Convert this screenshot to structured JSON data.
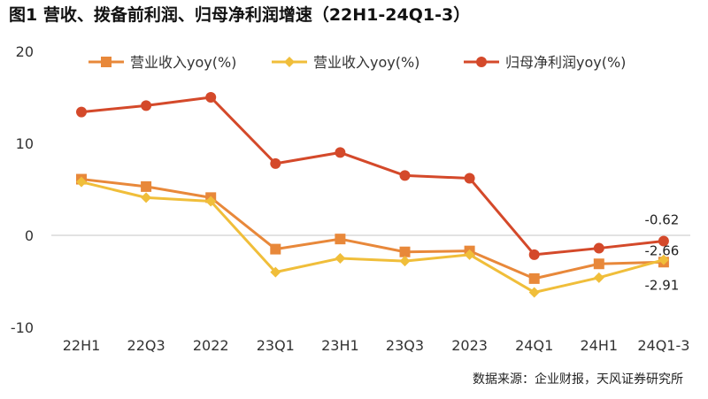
{
  "title": "图1  营收、拨备前利润、归母净利润增速（22H1-24Q1-3）",
  "source": "数据来源：企业财报，天风证券研究所",
  "colors": {
    "series1": "#E8883A",
    "series2": "#F0BE3A",
    "series3": "#D4492A",
    "zero_line": "#d9d9d9"
  },
  "chart_data": {
    "type": "line",
    "title": "",
    "xlabel": "",
    "ylabel": "",
    "ylim": [
      -10,
      20
    ],
    "yticks": [
      20,
      10,
      0,
      -10
    ],
    "categories": [
      "22H1",
      "22Q3",
      "2022",
      "23Q1",
      "23H1",
      "23Q3",
      "2023",
      "24Q1",
      "24H1",
      "24Q1-3"
    ],
    "legend_position": "top",
    "grid": false,
    "series": [
      {
        "name": "营业收入yoy(%)",
        "marker": "square",
        "color": "#E8883A",
        "values": [
          6.1,
          5.3,
          4.1,
          -1.5,
          -0.4,
          -1.8,
          -1.7,
          -4.7,
          -3.1,
          -2.91
        ]
      },
      {
        "name": "营业收入yoy(%)",
        "marker": "diamond",
        "color": "#F0BE3A",
        "values": [
          5.8,
          4.1,
          3.7,
          -4.0,
          -2.5,
          -2.8,
          -2.1,
          -6.2,
          -4.6,
          -2.66
        ]
      },
      {
        "name": "归母净利润yoy(%)",
        "marker": "circle",
        "color": "#D4492A",
        "values": [
          13.4,
          14.1,
          15.0,
          7.8,
          9.0,
          6.5,
          6.2,
          -2.1,
          -1.4,
          -0.62
        ]
      }
    ],
    "annotations": [
      {
        "text": "-0.62",
        "series": 2,
        "index": 9
      },
      {
        "text": "-2.66",
        "series": 1,
        "index": 9
      },
      {
        "text": "-2.91",
        "series": 0,
        "index": 9
      }
    ]
  }
}
